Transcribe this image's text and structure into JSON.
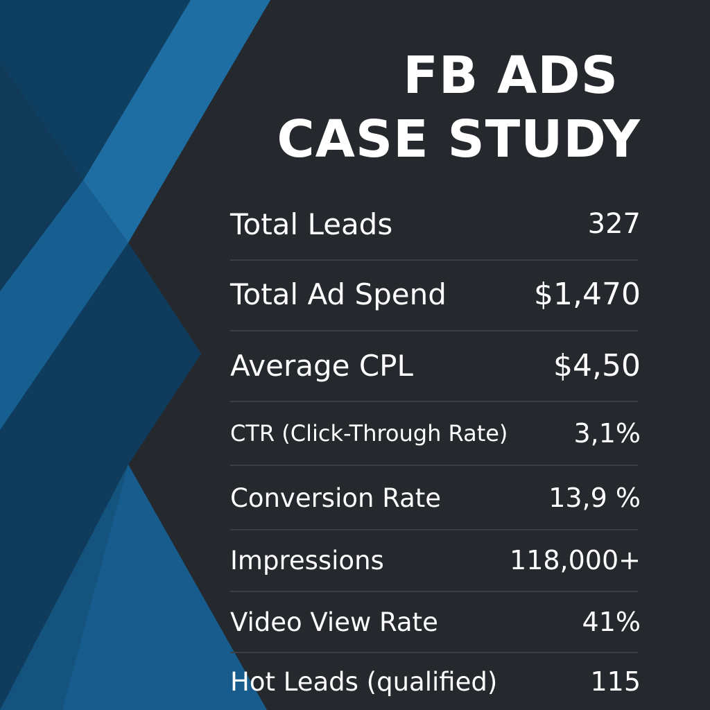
{
  "title": {
    "lines": [
      "FB ADS",
      "CASE STUDY"
    ]
  },
  "rows": [
    {
      "label": "Total Leads",
      "value": "327"
    },
    {
      "label": "Total Ad Spend",
      "value": "$1,470"
    },
    {
      "label": "Average CPL",
      "value": "$4,50"
    },
    {
      "label": "CTR (Click-Through Rate)",
      "value": "3,1%"
    },
    {
      "label": "Conversion Rate",
      "value": "13,9 %"
    },
    {
      "label": "Impressions",
      "value": "118,000+"
    },
    {
      "label": "Video View Rate",
      "value": "41%"
    },
    {
      "label": "Hot Leads (qualified)",
      "value": "115"
    }
  ]
}
